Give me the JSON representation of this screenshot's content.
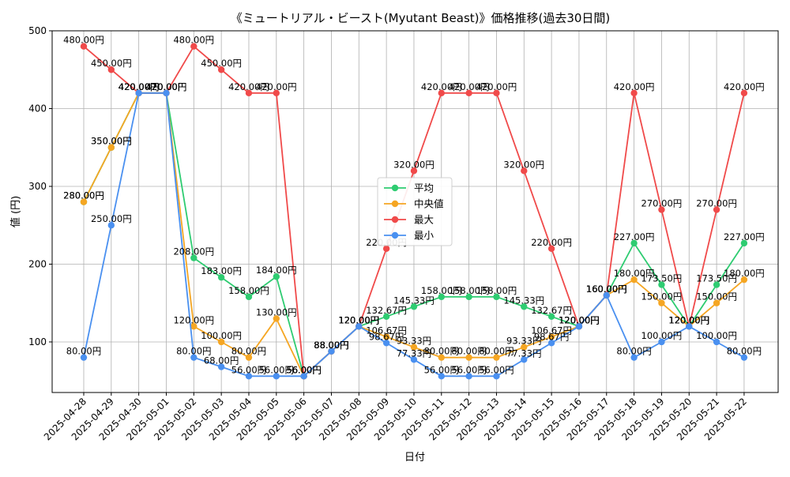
{
  "chart_data": {
    "type": "line",
    "title": "《ミュートリアル・ビースト(Myutant Beast)》価格推移(過去30日間)",
    "xlabel": "日付",
    "ylabel": "値 (円)",
    "ylim": [
      35,
      500
    ],
    "yticks": [
      100,
      200,
      300,
      400,
      500
    ],
    "grid": true,
    "legend_position": "center",
    "label_suffix": "円",
    "categories": [
      "2025-04-28",
      "2025-04-29",
      "2025-04-30",
      "2025-05-01",
      "2025-05-02",
      "2025-05-03",
      "2025-05-04",
      "2025-05-05",
      "2025-05-06",
      "2025-05-07",
      "2025-05-08",
      "2025-05-09",
      "2025-05-10",
      "2025-05-11",
      "2025-05-12",
      "2025-05-13",
      "2025-05-14",
      "2025-05-15",
      "2025-05-16",
      "2025-05-17",
      "2025-05-18",
      "2025-05-19",
      "2025-05-20",
      "2025-05-21",
      "2025-05-22"
    ],
    "series": [
      {
        "name": "平均",
        "color": "#2ecc71",
        "values": [
          280,
          350,
          420,
          420,
          208,
          183,
          158,
          184,
          56,
          88,
          120,
          132.67,
          145.33,
          158,
          158,
          158,
          145.33,
          132.67,
          120,
          160,
          227,
          173.5,
          120,
          173.5,
          227
        ],
        "labels": [
          "280.00円",
          "350.00円",
          "420.00円",
          "420.00円",
          "208.00円",
          "183.00円",
          "158.00円",
          "184.00円",
          "56.00円",
          "88.00円",
          "120.00円",
          "132.67円",
          "145.33円",
          "158.00円",
          "158.00円",
          "158.00円",
          "145.33円",
          "132.67円",
          "120.00円",
          "160.00円",
          "227.00円",
          "173.50円",
          "120.00円",
          "173.50円",
          "227.00円"
        ]
      },
      {
        "name": "中央値",
        "color": "#f5a623",
        "values": [
          280,
          350,
          420,
          420,
          120,
          100,
          80,
          130,
          56,
          88,
          120,
          106.67,
          93.33,
          80,
          80,
          80,
          93.33,
          106.67,
          120,
          160,
          180,
          150,
          120,
          150,
          180
        ],
        "labels": [
          "280.00円",
          "350.00円",
          "420.00円",
          "420.00円",
          "120.00円",
          "100.00円",
          "80.00円",
          "130.00円",
          "56.00円",
          "88.00円",
          "120.00円",
          "106.67円",
          "93.33円",
          "80.00円",
          "80.00円",
          "80.00円",
          "93.33円",
          "106.67円",
          "120.00円",
          "160.00円",
          "180.00円",
          "150.00円",
          "120.00円",
          "150.00円",
          "180.00円"
        ]
      },
      {
        "name": "最大",
        "color": "#f04a4a",
        "values": [
          480,
          450,
          420,
          420,
          480,
          450,
          420,
          420,
          56,
          88,
          120,
          220,
          320,
          420,
          420,
          420,
          320,
          220,
          120,
          160,
          420,
          270,
          120,
          270,
          420
        ],
        "labels": [
          "480.00円",
          "450.00円",
          "420.00円",
          "420.00円",
          "480.00円",
          "450.00円",
          "420.00円",
          "420.00円",
          "56.00円",
          "88.00円",
          "120.00円",
          "220.00円",
          "320.00円",
          "420.00円",
          "420.00円",
          "420.00円",
          "320.00円",
          "220.00円",
          "120.00円",
          "160.00円",
          "420.00円",
          "270.00円",
          "120.00円",
          "270.00円",
          "420.00円"
        ]
      },
      {
        "name": "最小",
        "color": "#4a90f0",
        "values": [
          80,
          250,
          420,
          420,
          80,
          68,
          56,
          56,
          56,
          88,
          120,
          98.67,
          77.33,
          56,
          56,
          56,
          77.33,
          98.67,
          120,
          160,
          80,
          100,
          120,
          100,
          80
        ],
        "labels": [
          "80.00円",
          "250.00円",
          "420.00円",
          "420.00円",
          "80.00円",
          "68.00円",
          "56.00円",
          "56.00円",
          "56.00円",
          "88.00円",
          "120.00円",
          "98.67円",
          "77.33円",
          "56.00円",
          "56.00円",
          "56.00円",
          "77.33円",
          "98.67円",
          "120.00円",
          "160.00円",
          "80.00円",
          "100.00円",
          "120.00円",
          "100.00円",
          "80.00円"
        ]
      }
    ]
  }
}
